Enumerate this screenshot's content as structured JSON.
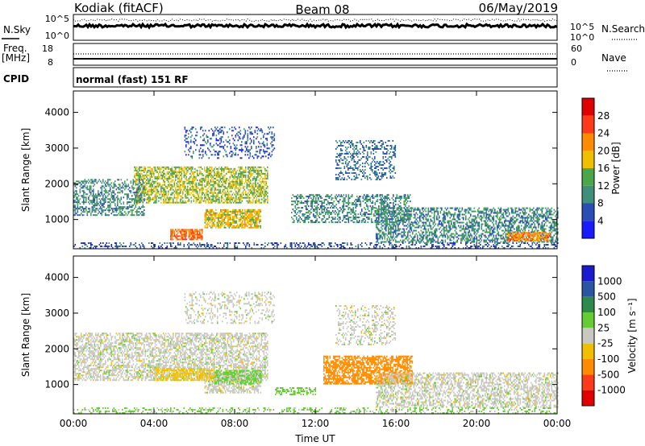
{
  "header": {
    "station": "Kodiak (fitACF)",
    "beam": "Beam 08",
    "date": "06/May/2019"
  },
  "top_panels": {
    "nsky_label": "N.Sky",
    "nsearch_label": "N.Search",
    "left_top_tick": "10^5",
    "left_bottom_tick": "10^0",
    "right_top_tick": "10^5",
    "right_bottom_tick": "10^0",
    "freq_label_line1": "Freq.",
    "freq_label_line2": "[MHz]",
    "freq_ticks": [
      "18",
      "8"
    ],
    "nave_label": "Nave",
    "nave_ticks": [
      "60",
      "0"
    ],
    "cpid_label": "CPID",
    "cpid_text": "normal (fast) 151 RF"
  },
  "chart_data": [
    {
      "type": "heatmap",
      "panel": "power",
      "xlabel": "",
      "ylabel": "Slant Range [km]",
      "x_ticks": [
        "00:00",
        "04:00",
        "08:00",
        "12:00",
        "16:00",
        "20:00",
        "00:00"
      ],
      "x_range_hours": [
        0,
        24
      ],
      "y_range_km": [
        180,
        4600
      ],
      "y_ticks": [
        1000,
        2000,
        3000,
        4000
      ],
      "colorbar_label": "Power [dB]",
      "colorbar_ticks": [
        4,
        8,
        12,
        16,
        20,
        24,
        28
      ],
      "colorbar_range": [
        0,
        32
      ],
      "colors": [
        "#1a1aff",
        "#2a4db5",
        "#3f8f7a",
        "#4aa64a",
        "#f0c000",
        "#ff8c00",
        "#ff3a1a",
        "#e00000"
      ],
      "regions": [
        {
          "t": [
            3.0,
            9.6
          ],
          "r": [
            1450,
            2450
          ],
          "level": 16,
          "density": 0.6
        },
        {
          "t": [
            6.5,
            9.3
          ],
          "r": [
            750,
            1250
          ],
          "level": 18,
          "density": 0.7
        },
        {
          "t": [
            4.8,
            6.4
          ],
          "r": [
            420,
            700
          ],
          "level": 24,
          "density": 0.8
        },
        {
          "t": [
            0.0,
            3.5
          ],
          "r": [
            1100,
            2100
          ],
          "level": 10,
          "density": 0.45
        },
        {
          "t": [
            10.8,
            16.8
          ],
          "r": [
            900,
            1700
          ],
          "level": 10,
          "density": 0.45
        },
        {
          "t": [
            15.0,
            24.0
          ],
          "r": [
            350,
            1300
          ],
          "level": 10,
          "density": 0.5
        },
        {
          "t": [
            21.5,
            23.6
          ],
          "r": [
            380,
            620
          ],
          "level": 22,
          "density": 0.7
        },
        {
          "t": [
            13.0,
            16.0
          ],
          "r": [
            2100,
            3200
          ],
          "level": 8,
          "density": 0.3
        },
        {
          "t": [
            5.5,
            10.0
          ],
          "r": [
            2700,
            3600
          ],
          "level": 6,
          "density": 0.25
        },
        {
          "t": [
            0.0,
            24.0
          ],
          "r": [
            180,
            320
          ],
          "level": 6,
          "density": 0.3
        }
      ]
    },
    {
      "type": "heatmap",
      "panel": "velocity",
      "xlabel": "Time UT",
      "ylabel": "Slant Range [km]",
      "x_ticks": [
        "00:00",
        "04:00",
        "08:00",
        "12:00",
        "16:00",
        "20:00",
        "00:00"
      ],
      "x_range_hours": [
        0,
        24
      ],
      "y_range_km": [
        180,
        4600
      ],
      "y_ticks": [
        1000,
        2000,
        3000,
        4000
      ],
      "colorbar_label": "Velocity [m s⁻¹]",
      "colorbar_ticks": [
        "1000",
        "500",
        "100",
        "25",
        "-25",
        "-100",
        "-500",
        "-1000"
      ],
      "colors": [
        "#1a1ad0",
        "#2a55a0",
        "#2e8a4a",
        "#66cc33",
        "#c8c8c0",
        "#f0c000",
        "#ff8c00",
        "#ff3a1a",
        "#e00000"
      ],
      "regions": [
        {
          "t": [
            0.0,
            9.6
          ],
          "r": [
            1100,
            2450
          ],
          "vel": 0,
          "density": 0.55
        },
        {
          "t": [
            6.5,
            9.3
          ],
          "r": [
            750,
            1300
          ],
          "vel": 0,
          "density": 0.6
        },
        {
          "t": [
            7.0,
            9.3
          ],
          "r": [
            1000,
            1400
          ],
          "vel": 60,
          "density": 0.5
        },
        {
          "t": [
            4.0,
            7.0
          ],
          "r": [
            1100,
            1450
          ],
          "vel": -60,
          "density": 0.5
        },
        {
          "t": [
            12.4,
            16.8
          ],
          "r": [
            1000,
            1800
          ],
          "vel": -250,
          "density": 0.7
        },
        {
          "t": [
            10.0,
            12.0
          ],
          "r": [
            700,
            900
          ],
          "vel": 60,
          "density": 0.5
        },
        {
          "t": [
            15.0,
            24.0
          ],
          "r": [
            350,
            1300
          ],
          "vel": 0,
          "density": 0.5
        },
        {
          "t": [
            13.0,
            16.0
          ],
          "r": [
            2100,
            3200
          ],
          "vel": 0,
          "density": 0.3
        },
        {
          "t": [
            5.5,
            10.0
          ],
          "r": [
            2700,
            3600
          ],
          "vel": 0,
          "density": 0.25
        },
        {
          "t": [
            0.0,
            24.0
          ],
          "r": [
            180,
            320
          ],
          "vel": 40,
          "density": 0.3
        }
      ]
    }
  ]
}
